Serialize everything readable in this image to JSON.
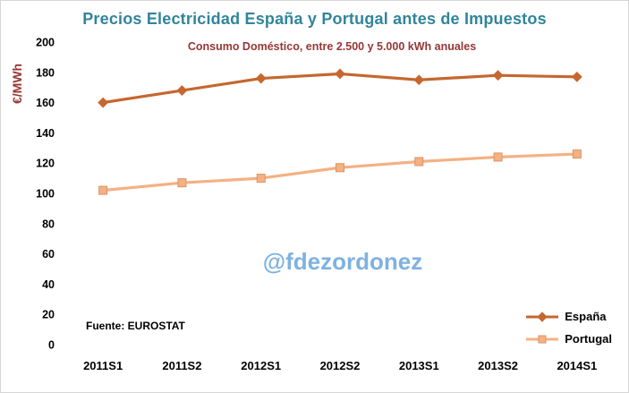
{
  "title": "Precios Electricidad España y Portugal antes de Impuestos",
  "subtitle": "Consumo Doméstico, entre 2.500 y 5.000 kWh anuales",
  "y_axis_label": "€/MWh",
  "watermark": "@fdezordonez",
  "source": "Fuente: EUROSTAT",
  "colors": {
    "title": "#31859B",
    "subtitle": "#953735",
    "watermark": "#7FB2E0",
    "espana_line": "#C5672F",
    "portugal_line": "#F4B183",
    "portugal_marker_edge": "#DE9263"
  },
  "chart_data": {
    "type": "line",
    "categories": [
      "2011S1",
      "2011S2",
      "2012S1",
      "2012S2",
      "2013S1",
      "2013S2",
      "2014S1"
    ],
    "series": [
      {
        "name": "España",
        "values": [
          160,
          168,
          176,
          179,
          175,
          178,
          177
        ],
        "color": "#C5672F",
        "marker": "diamond"
      },
      {
        "name": "Portugal",
        "values": [
          102,
          107,
          110,
          117,
          121,
          124,
          126
        ],
        "color": "#F4B183",
        "marker": "square",
        "marker_edge": "#DE9263"
      }
    ],
    "ylim": [
      0,
      200
    ],
    "ytick_step": 20,
    "grid": false,
    "legend_position": "bottom-right"
  }
}
